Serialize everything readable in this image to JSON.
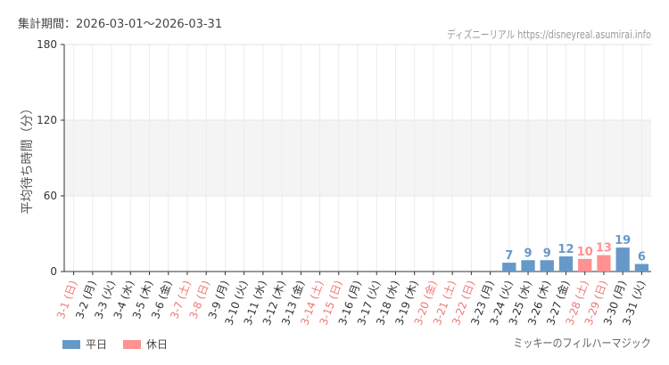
{
  "header": {
    "period": "集計期間：2026-03-01〜2026-03-31",
    "site": "ディズニーリアル https://disneyreal.asumirai.info"
  },
  "footer": {
    "attraction": "ミッキーのフィルハーマジック"
  },
  "legend": [
    {
      "label": "平日",
      "color": "#6699c8"
    },
    {
      "label": "休日",
      "color": "#ff9191"
    }
  ],
  "chart_data": {
    "type": "bar",
    "ylabel": "平均待ち時間（分）",
    "ylim": [
      0,
      180
    ],
    "yticks": [
      0,
      60,
      120,
      180
    ],
    "shaded_band": [
      60,
      120
    ],
    "grid": true,
    "legend_position": "bottom-left",
    "categories": [
      "3-1 (日)",
      "3-2 (月)",
      "3-3 (火)",
      "3-4 (水)",
      "3-5 (木)",
      "3-6 (金)",
      "3-7 (土)",
      "3-8 (日)",
      "3-9 (月)",
      "3-10 (火)",
      "3-11 (水)",
      "3-12 (木)",
      "3-13 (金)",
      "3-14 (土)",
      "3-15 (日)",
      "3-16 (月)",
      "3-17 (火)",
      "3-18 (水)",
      "3-19 (木)",
      "3-20 (金)",
      "3-21 (土)",
      "3-22 (日)",
      "3-23 (月)",
      "3-24 (火)",
      "3-25 (水)",
      "3-26 (木)",
      "3-27 (金)",
      "3-28 (土)",
      "3-29 (日)",
      "3-30 (月)",
      "3-31 (火)"
    ],
    "holiday": [
      true,
      false,
      false,
      false,
      false,
      false,
      true,
      true,
      false,
      false,
      false,
      false,
      false,
      true,
      true,
      false,
      false,
      false,
      false,
      true,
      true,
      true,
      false,
      false,
      false,
      false,
      false,
      true,
      true,
      false,
      false
    ],
    "values": [
      null,
      null,
      null,
      null,
      null,
      null,
      null,
      null,
      null,
      null,
      null,
      null,
      null,
      null,
      null,
      null,
      null,
      null,
      null,
      null,
      null,
      null,
      null,
      7,
      9,
      9,
      12,
      10,
      13,
      19,
      6
    ],
    "colors": {
      "weekday": "#6699c8",
      "holiday": "#ff9191",
      "holiday_label": "#f07878",
      "band": "#f4f4f4"
    }
  }
}
